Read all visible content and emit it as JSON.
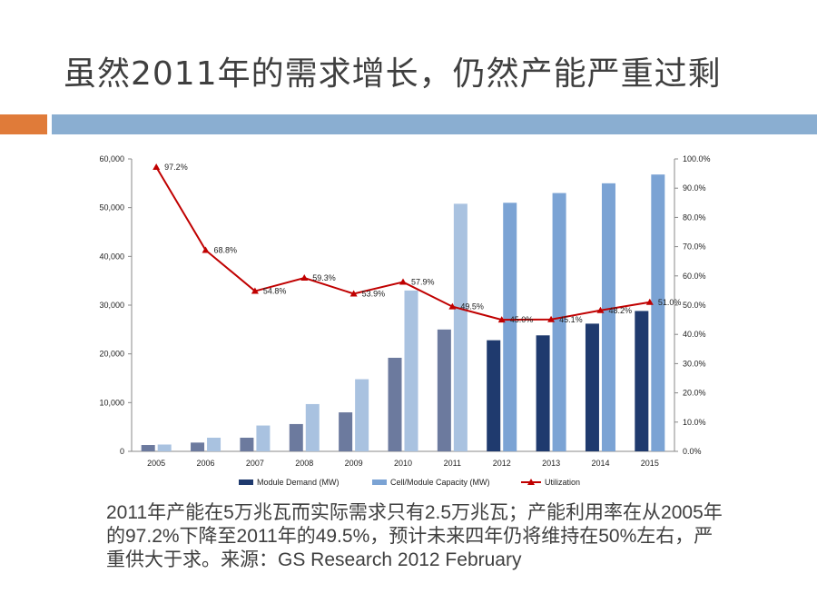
{
  "title": "虽然2011年的需求增长，仍然产能严重过剩",
  "colors": {
    "accent_orange": "#e07b39",
    "accent_blue": "#8aaed1",
    "module_demand": "#1f3a6e",
    "capacity": "#7ba3d4",
    "utilization": "#c00000"
  },
  "caption": "2011年产能在5万兆瓦而实际需求只有2.5万兆瓦；产能利用率在从2005年的97.2%下降至2011年的49.5%，预计未来四年仍将维持在50%左右，严重供大于求。来源：GS Research 2012 February",
  "chart_data": {
    "type": "bar",
    "categories": [
      "2005",
      "2006",
      "2007",
      "2008",
      "2009",
      "2010",
      "2011",
      "2012",
      "2013",
      "2014",
      "2015"
    ],
    "series": [
      {
        "name": "Module Demand (MW)",
        "type": "bar",
        "axis": "left",
        "values": [
          1300,
          1800,
          2800,
          5600,
          8000,
          19200,
          25000,
          22800,
          23800,
          26200,
          28800
        ]
      },
      {
        "name": "Cell/Module Capacity (MW)",
        "type": "bar",
        "axis": "left",
        "values": [
          1400,
          2800,
          5300,
          9700,
          14800,
          33000,
          50800,
          51000,
          53000,
          55000,
          56800
        ]
      },
      {
        "name": "Utilization",
        "type": "line",
        "axis": "right",
        "values": [
          97.2,
          68.8,
          54.8,
          59.3,
          53.9,
          57.9,
          49.5,
          45.0,
          45.1,
          48.2,
          51.0
        ],
        "labels": [
          "97.2%",
          "68.8%",
          "54.8%",
          "59.3%",
          "53.9%",
          "57.9%",
          "49.5%",
          "45.0%",
          "45.1%",
          "48.2%",
          "51.0%"
        ]
      }
    ],
    "y_left": {
      "ylim": [
        0,
        60000
      ],
      "ticks": [
        "0",
        "10,000",
        "20,000",
        "30,000",
        "40,000",
        "50,000",
        "60,000"
      ]
    },
    "y_right": {
      "ylim": [
        0,
        100
      ],
      "ticks": [
        "0.0%",
        "10.0%",
        "20.0%",
        "30.0%",
        "40.0%",
        "50.0%",
        "60.0%",
        "70.0%",
        "80.0%",
        "90.0%",
        "100.0%"
      ]
    },
    "legend": [
      "Module Demand (MW)",
      "Cell/Module Capacity (MW)",
      "Utilization"
    ],
    "legend_position": "bottom",
    "grid": false
  }
}
